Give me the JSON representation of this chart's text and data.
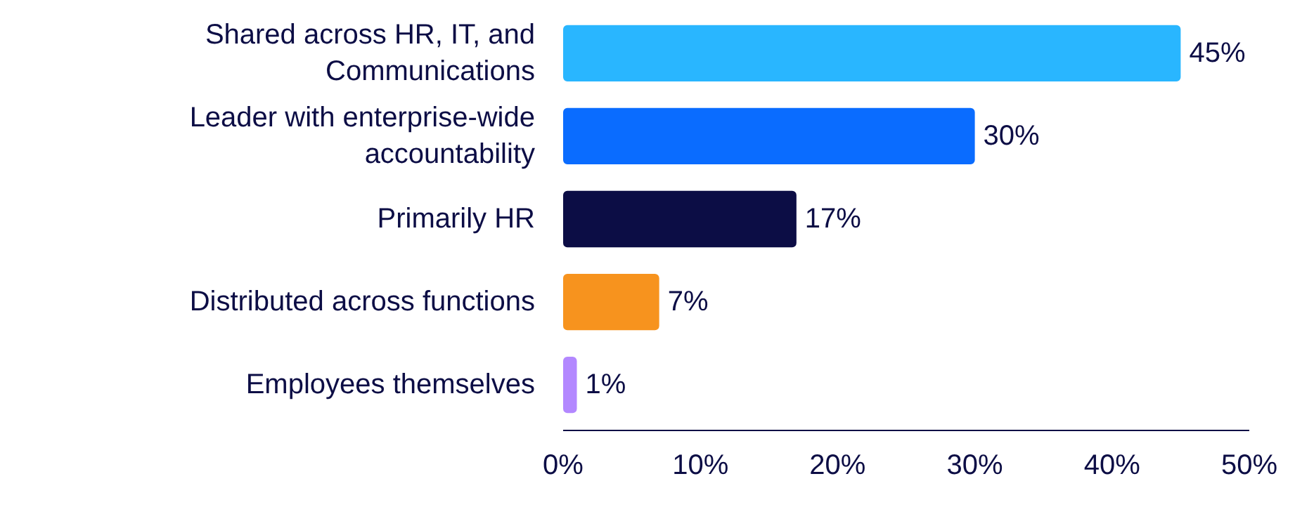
{
  "chart_data": {
    "type": "bar",
    "orientation": "horizontal",
    "categories": [
      "Shared across HR, IT, and Communications",
      "Leader with enterprise-wide accountability",
      "Primarily HR",
      "Distributed across functions",
      "Employees themselves"
    ],
    "values": [
      45,
      30,
      17,
      7,
      1
    ],
    "colors": [
      "#29b6ff",
      "#0a6cff",
      "#0c0d45",
      "#f7931e",
      "#b388ff"
    ],
    "value_labels": [
      "45%",
      "30%",
      "17%",
      "7%",
      "1%"
    ],
    "xlim": [
      0,
      50
    ],
    "xticks": [
      {
        "value": 0,
        "label": "0%"
      },
      {
        "value": 10,
        "label": "10%"
      },
      {
        "value": 20,
        "label": "20%"
      },
      {
        "value": 30,
        "label": "30%"
      },
      {
        "value": 40,
        "label": "40%"
      },
      {
        "value": 50,
        "label": "50%"
      }
    ],
    "grid": false
  }
}
